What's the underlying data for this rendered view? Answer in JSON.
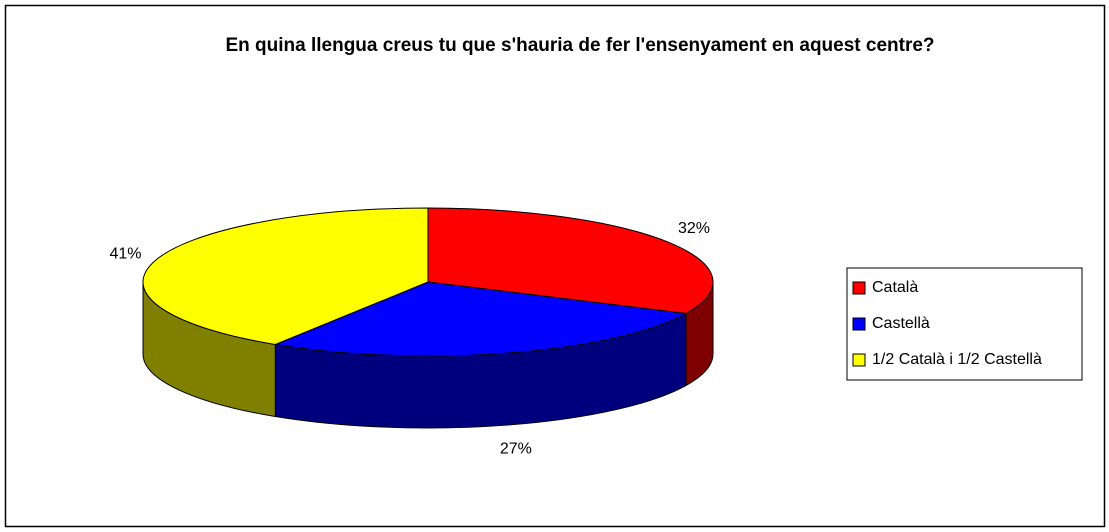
{
  "chart_data": {
    "type": "pie",
    "title": "En quina llengua creus tu que s'hauria de fer l'ensenyament en aquest centre?",
    "categories": [
      "Català",
      "Castellà",
      "1/2 Català i 1/2 Castellà"
    ],
    "values": [
      32,
      27,
      41
    ],
    "value_labels": [
      "32%",
      "27%",
      "41%"
    ],
    "colors": [
      "#ff0000",
      "#0000ff",
      "#ffff00"
    ],
    "legend": "right"
  }
}
